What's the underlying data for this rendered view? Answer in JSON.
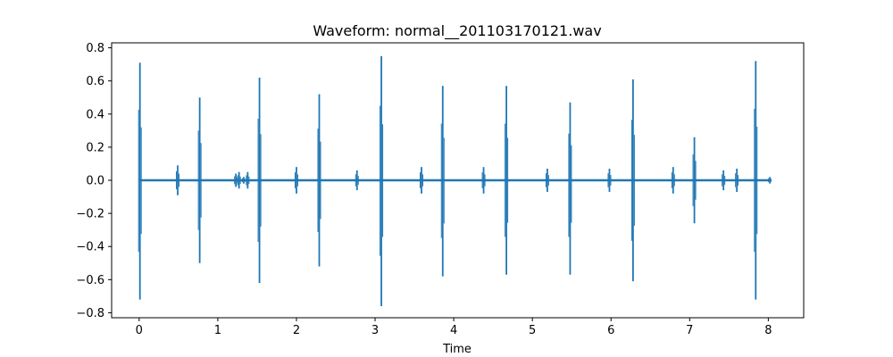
{
  "chart_data": {
    "type": "line",
    "title": "Waveform: normal__201103170121.wav",
    "xlabel": "Time",
    "ylabel": "",
    "xlim": [
      -0.35,
      8.45
    ],
    "ylim": [
      -0.83,
      0.83
    ],
    "grid": false,
    "x_ticks": [
      0,
      1,
      2,
      3,
      4,
      5,
      6,
      7,
      8
    ],
    "x_tick_labels": [
      "0",
      "1",
      "2",
      "3",
      "4",
      "5",
      "6",
      "7",
      "8"
    ],
    "y_ticks": [
      -0.8,
      -0.6,
      -0.4,
      -0.2,
      0.0,
      0.2,
      0.4,
      0.6,
      0.8
    ],
    "y_tick_labels": [
      "−0.8",
      "−0.6",
      "−0.4",
      "−0.2",
      "0.0",
      "0.2",
      "0.4",
      "0.6",
      "0.8"
    ],
    "duration_s": 8.03,
    "line_color": "#1f77b4",
    "series": [
      {
        "name": "",
        "values": [
          {
            "t": 0.01,
            "min": -0.72,
            "max": 0.71
          },
          {
            "t": 0.49,
            "min": -0.09,
            "max": 0.09
          },
          {
            "t": 0.77,
            "min": -0.5,
            "max": 0.5
          },
          {
            "t": 1.23,
            "min": -0.04,
            "max": 0.04
          },
          {
            "t": 1.27,
            "min": -0.05,
            "max": 0.05
          },
          {
            "t": 1.33,
            "min": -0.02,
            "max": 0.02
          },
          {
            "t": 1.38,
            "min": -0.05,
            "max": 0.05
          },
          {
            "t": 1.53,
            "min": -0.62,
            "max": 0.62
          },
          {
            "t": 2.0,
            "min": -0.08,
            "max": 0.08
          },
          {
            "t": 2.29,
            "min": -0.52,
            "max": 0.52
          },
          {
            "t": 2.77,
            "min": -0.06,
            "max": 0.06
          },
          {
            "t": 3.08,
            "min": -0.76,
            "max": 0.75
          },
          {
            "t": 3.59,
            "min": -0.08,
            "max": 0.08
          },
          {
            "t": 3.86,
            "min": -0.58,
            "max": 0.57
          },
          {
            "t": 4.38,
            "min": -0.08,
            "max": 0.08
          },
          {
            "t": 4.67,
            "min": -0.57,
            "max": 0.57
          },
          {
            "t": 5.19,
            "min": -0.07,
            "max": 0.07
          },
          {
            "t": 5.48,
            "min": -0.57,
            "max": 0.47
          },
          {
            "t": 5.98,
            "min": -0.07,
            "max": 0.07
          },
          {
            "t": 6.28,
            "min": -0.61,
            "max": 0.61
          },
          {
            "t": 6.79,
            "min": -0.08,
            "max": 0.08
          },
          {
            "t": 7.06,
            "min": -0.26,
            "max": 0.26
          },
          {
            "t": 7.43,
            "min": -0.06,
            "max": 0.06
          },
          {
            "t": 7.6,
            "min": -0.07,
            "max": 0.07
          },
          {
            "t": 7.84,
            "min": -0.72,
            "max": 0.72
          },
          {
            "t": 8.02,
            "min": -0.02,
            "max": 0.02
          }
        ]
      }
    ]
  }
}
